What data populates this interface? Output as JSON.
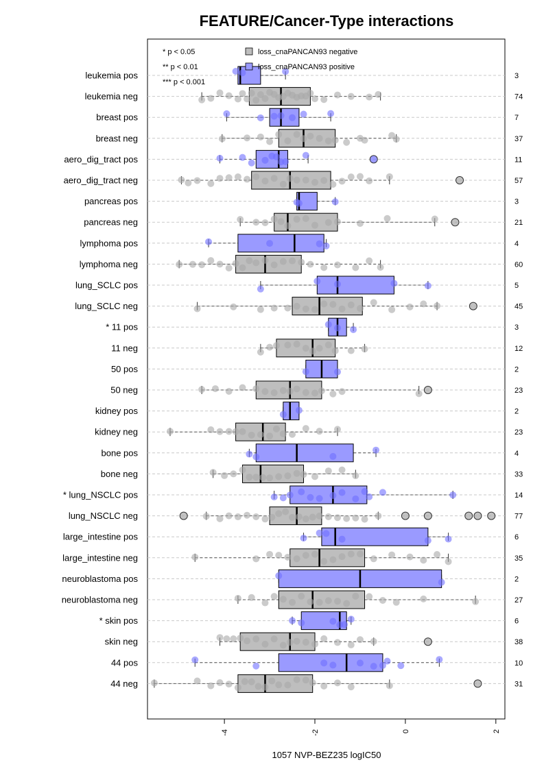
{
  "chart_data": {
    "type": "boxplot",
    "title": "FEATURE/Cancer-Type interactions",
    "xlabel": "1057 NVP-BEZ235 logIC50",
    "ylabel": "",
    "xlim": [
      -5.7,
      2.2
    ],
    "x_ticks": [
      -4,
      -2,
      0,
      2
    ],
    "x_tick_labels": [
      "-4",
      "-2",
      "0",
      "2"
    ],
    "significance_legend": [
      "* p < 0.05",
      "** p < 0.01",
      "*** p < 0.001"
    ],
    "legend": [
      {
        "label": "loss_cnaPANCAN93 negative",
        "color": "#bebebe"
      },
      {
        "label": "loss_cnaPANCAN93 positive",
        "color": "#9a9aff"
      }
    ],
    "colors": {
      "negative_fill": "#bebebe",
      "positive_fill": "#9a9aff",
      "negative_point": "#a8a8a8",
      "positive_point": "#7070ff",
      "grid": "#c8c8c8"
    },
    "rows": [
      {
        "label": "leukemia pos",
        "n": "3",
        "group": "pos",
        "whisker_low": -3.7,
        "q1": -3.7,
        "median": -3.65,
        "q3": -3.2,
        "whisker_high": -2.65,
        "outliers": [],
        "points": [
          -3.75,
          -3.6,
          -2.65
        ]
      },
      {
        "label": "leukemia neg",
        "n": "74",
        "group": "neg",
        "whisker_low": -4.5,
        "q1": -3.45,
        "median": -2.75,
        "q3": -2.1,
        "whisker_high": -0.55,
        "outliers": [],
        "points": [
          -4.5,
          -4.3,
          -4.1,
          -3.9,
          -3.7,
          -3.6,
          -3.5,
          -3.4,
          -3.3,
          -3.2,
          -3.1,
          -3.0,
          -2.9,
          -2.8,
          -2.7,
          -2.6,
          -2.5,
          -2.4,
          -2.3,
          -2.2,
          -2.1,
          -2.0,
          -1.8,
          -1.5,
          -1.2,
          -0.8,
          -0.6
        ]
      },
      {
        "label": "breast pos",
        "n": "7",
        "group": "pos",
        "whisker_low": -3.95,
        "q1": -3.0,
        "median": -2.75,
        "q3": -2.35,
        "whisker_high": -1.65,
        "outliers": [],
        "points": [
          -3.95,
          -3.2,
          -2.9,
          -2.75,
          -2.5,
          -2.25,
          -1.65
        ]
      },
      {
        "label": "breast neg",
        "n": "37",
        "group": "neg",
        "whisker_low": -4.05,
        "q1": -2.8,
        "median": -2.25,
        "q3": -1.55,
        "whisker_high": -0.2,
        "outliers": [],
        "points": [
          -4.05,
          -3.5,
          -3.2,
          -3.0,
          -2.8,
          -2.6,
          -2.4,
          -2.25,
          -2.1,
          -1.9,
          -1.7,
          -1.55,
          -1.3,
          -1.0,
          -0.9,
          -0.3,
          -0.2
        ]
      },
      {
        "label": "aero_dig_tract pos",
        "n": "11",
        "group": "pos",
        "whisker_low": -4.1,
        "q1": -3.3,
        "median": -2.8,
        "q3": -2.6,
        "whisker_high": -2.15,
        "outliers": [
          -0.7
        ],
        "points": [
          -4.1,
          -3.6,
          -3.4,
          -3.1,
          -2.95,
          -2.85,
          -2.75,
          -2.65,
          -2.2
        ]
      },
      {
        "label": "aero_dig_tract neg",
        "n": "57",
        "group": "neg",
        "whisker_low": -4.95,
        "q1": -3.4,
        "median": -2.55,
        "q3": -1.65,
        "whisker_high": -0.35,
        "outliers": [
          1.2
        ],
        "points": [
          -4.95,
          -4.8,
          -4.6,
          -4.3,
          -4.1,
          -3.9,
          -3.7,
          -3.5,
          -3.3,
          -3.1,
          -2.9,
          -2.7,
          -2.55,
          -2.4,
          -2.2,
          -2.0,
          -1.8,
          -1.6,
          -1.4,
          -1.2,
          -1.0,
          -0.8,
          -0.35
        ]
      },
      {
        "label": "pancreas pos",
        "n": "3",
        "group": "pos",
        "whisker_low": -2.4,
        "q1": -2.4,
        "median": -2.35,
        "q3": -1.95,
        "whisker_high": -1.55,
        "outliers": [],
        "points": [
          -2.4,
          -2.35,
          -1.55
        ]
      },
      {
        "label": "pancreas neg",
        "n": "21",
        "group": "neg",
        "whisker_low": -3.65,
        "q1": -2.9,
        "median": -2.6,
        "q3": -1.5,
        "whisker_high": 0.65,
        "outliers": [
          1.1
        ],
        "points": [
          -3.65,
          -3.3,
          -3.1,
          -2.9,
          -2.75,
          -2.6,
          -2.4,
          -2.2,
          -2.0,
          -1.7,
          -1.5,
          -1.0,
          -0.4,
          0.65
        ]
      },
      {
        "label": "lymphoma pos",
        "n": "4",
        "group": "pos",
        "whisker_low": -4.35,
        "q1": -3.7,
        "median": -2.45,
        "q3": -1.8,
        "whisker_high": -1.75,
        "outliers": [],
        "points": [
          -4.35,
          -3.0,
          -1.9,
          -1.75
        ]
      },
      {
        "label": "lymphoma neg",
        "n": "60",
        "group": "neg",
        "whisker_low": -5.0,
        "q1": -3.75,
        "median": -3.1,
        "q3": -2.3,
        "whisker_high": -0.55,
        "outliers": [],
        "points": [
          -5.0,
          -4.7,
          -4.5,
          -4.3,
          -4.1,
          -3.9,
          -3.75,
          -3.6,
          -3.45,
          -3.3,
          -3.1,
          -2.9,
          -2.7,
          -2.5,
          -2.3,
          -2.1,
          -1.8,
          -1.5,
          -1.1,
          -0.8,
          -0.55
        ]
      },
      {
        "label": "lung_SCLC pos",
        "n": "5",
        "group": "pos",
        "whisker_low": -3.2,
        "q1": -1.95,
        "median": -1.5,
        "q3": -0.25,
        "whisker_high": 0.5,
        "outliers": [],
        "points": [
          -3.2,
          -1.95,
          -1.5,
          -0.25,
          0.5
        ]
      },
      {
        "label": "lung_SCLC neg",
        "n": "45",
        "group": "neg",
        "whisker_low": -4.6,
        "q1": -2.5,
        "median": -1.9,
        "q3": -0.95,
        "whisker_high": 0.7,
        "outliers": [
          1.5
        ],
        "points": [
          -4.6,
          -3.8,
          -3.2,
          -2.9,
          -2.6,
          -2.4,
          -2.2,
          -2.0,
          -1.8,
          -1.6,
          -1.4,
          -1.2,
          -1.0,
          -0.7,
          -0.3,
          0.1,
          0.4,
          0.7
        ]
      },
      {
        "label": "* 11 pos",
        "n": "3",
        "group": "pos",
        "whisker_low": -1.7,
        "q1": -1.7,
        "median": -1.5,
        "q3": -1.3,
        "whisker_high": -1.15,
        "outliers": [],
        "points": [
          -1.7,
          -1.5,
          -1.15
        ]
      },
      {
        "label": "11 neg",
        "n": "12",
        "group": "neg",
        "whisker_low": -3.2,
        "q1": -2.85,
        "median": -2.05,
        "q3": -1.55,
        "whisker_high": -0.9,
        "outliers": [],
        "points": [
          -3.2,
          -3.0,
          -2.85,
          -2.6,
          -2.4,
          -2.2,
          -2.05,
          -1.9,
          -1.7,
          -1.55,
          -1.2,
          -0.9
        ]
      },
      {
        "label": "50 pos",
        "n": "2",
        "group": "pos",
        "whisker_low": -2.2,
        "q1": -2.2,
        "median": -1.85,
        "q3": -1.5,
        "whisker_high": -1.5,
        "outliers": [],
        "points": [
          -2.2,
          -1.5
        ]
      },
      {
        "label": "50 neg",
        "n": "23",
        "group": "neg",
        "whisker_low": -4.5,
        "q1": -3.3,
        "median": -2.55,
        "q3": -1.85,
        "whisker_high": 0.3,
        "outliers": [
          0.5
        ],
        "points": [
          -4.5,
          -4.2,
          -3.9,
          -3.6,
          -3.3,
          -3.1,
          -2.9,
          -2.7,
          -2.55,
          -2.4,
          -2.2,
          -2.0,
          -1.85,
          -1.6,
          -1.4,
          0.3
        ]
      },
      {
        "label": "kidney pos",
        "n": "2",
        "group": "pos",
        "whisker_low": -2.7,
        "q1": -2.7,
        "median": -2.55,
        "q3": -2.35,
        "whisker_high": -2.35,
        "outliers": [],
        "points": [
          -2.7,
          -2.35
        ]
      },
      {
        "label": "kidney neg",
        "n": "23",
        "group": "neg",
        "whisker_low": -5.2,
        "q1": -3.75,
        "median": -3.15,
        "q3": -2.65,
        "whisker_high": -1.5,
        "outliers": [],
        "points": [
          -5.2,
          -4.3,
          -4.1,
          -3.9,
          -3.75,
          -3.6,
          -3.4,
          -3.2,
          -3.0,
          -2.85,
          -2.7,
          -2.5,
          -2.2,
          -1.9,
          -1.5
        ]
      },
      {
        "label": "bone pos",
        "n": "4",
        "group": "pos",
        "whisker_low": -3.45,
        "q1": -3.3,
        "median": -2.4,
        "q3": -1.15,
        "whisker_high": -0.65,
        "outliers": [],
        "points": [
          -3.45,
          -3.3,
          -1.6,
          -0.65
        ]
      },
      {
        "label": "bone neg",
        "n": "33",
        "group": "neg",
        "whisker_low": -4.25,
        "q1": -3.6,
        "median": -3.2,
        "q3": -2.25,
        "whisker_high": -1.1,
        "outliers": [],
        "points": [
          -4.25,
          -4.0,
          -3.8,
          -3.6,
          -3.45,
          -3.3,
          -3.15,
          -3.0,
          -2.8,
          -2.6,
          -2.4,
          -2.25,
          -2.0,
          -1.7,
          -1.4,
          -1.1
        ]
      },
      {
        "label": "* lung_NSCLC pos",
        "n": "14",
        "group": "pos",
        "whisker_low": -2.9,
        "q1": -2.55,
        "median": -1.6,
        "q3": -0.85,
        "whisker_high": 1.05,
        "outliers": [],
        "points": [
          -2.9,
          -2.7,
          -2.55,
          -2.3,
          -2.1,
          -1.9,
          -1.6,
          -1.4,
          -1.1,
          -0.9,
          -0.8,
          -0.5,
          1.05
        ]
      },
      {
        "label": "lung_NSCLC neg",
        "n": "77",
        "group": "neg",
        "whisker_low": -4.4,
        "q1": -3.0,
        "median": -2.4,
        "q3": -1.85,
        "whisker_high": -0.6,
        "outliers": [
          -4.9,
          0.0,
          0.5,
          1.4,
          1.6,
          1.9
        ],
        "points": [
          -4.4,
          -4.1,
          -3.9,
          -3.7,
          -3.5,
          -3.3,
          -3.1,
          -2.95,
          -2.8,
          -2.65,
          -2.5,
          -2.35,
          -2.2,
          -2.05,
          -1.9,
          -1.7,
          -1.5,
          -1.3,
          -1.1,
          -0.9,
          -0.6
        ]
      },
      {
        "label": "large_intestine pos",
        "n": "6",
        "group": "pos",
        "whisker_low": -2.25,
        "q1": -1.85,
        "median": -1.55,
        "q3": 0.5,
        "whisker_high": 0.95,
        "outliers": [],
        "points": [
          -2.25,
          -1.9,
          -1.75,
          -1.4,
          0.5,
          0.95
        ]
      },
      {
        "label": "large_intestine neg",
        "n": "35",
        "group": "neg",
        "whisker_low": -4.65,
        "q1": -2.55,
        "median": -1.9,
        "q3": -0.9,
        "whisker_high": 0.95,
        "outliers": [],
        "points": [
          -4.65,
          -3.3,
          -3.0,
          -2.8,
          -2.6,
          -2.4,
          -2.2,
          -2.0,
          -1.8,
          -1.6,
          -1.4,
          -1.2,
          -1.0,
          -0.7,
          -0.3,
          0.1,
          0.4,
          0.7,
          0.95
        ]
      },
      {
        "label": "neuroblastoma pos",
        "n": "2",
        "group": "pos",
        "whisker_low": -2.8,
        "q1": -2.8,
        "median": -1.0,
        "q3": 0.8,
        "whisker_high": 0.8,
        "outliers": [],
        "points": [
          -2.8,
          0.8
        ]
      },
      {
        "label": "neuroblastoma neg",
        "n": "27",
        "group": "neg",
        "whisker_low": -3.7,
        "q1": -2.8,
        "median": -2.05,
        "q3": -0.9,
        "whisker_high": 1.55,
        "outliers": [],
        "points": [
          -3.7,
          -3.4,
          -3.1,
          -2.9,
          -2.7,
          -2.5,
          -2.3,
          -2.1,
          -1.9,
          -1.7,
          -1.5,
          -1.3,
          -1.1,
          -0.8,
          -0.5,
          -0.2,
          0.4,
          1.55
        ]
      },
      {
        "label": "* skin pos",
        "n": "6",
        "group": "pos",
        "whisker_low": -2.5,
        "q1": -2.3,
        "median": -1.45,
        "q3": -1.3,
        "whisker_high": -1.2,
        "outliers": [],
        "points": [
          -2.5,
          -2.3,
          -1.6,
          -1.45,
          -1.35,
          -1.2
        ]
      },
      {
        "label": "skin neg",
        "n": "38",
        "group": "neg",
        "whisker_low": -4.1,
        "q1": -3.65,
        "median": -2.55,
        "q3": -2.0,
        "whisker_high": -0.7,
        "outliers": [
          0.5
        ],
        "points": [
          -4.1,
          -3.95,
          -3.8,
          -3.65,
          -3.5,
          -3.3,
          -3.1,
          -2.9,
          -2.7,
          -2.55,
          -2.4,
          -2.2,
          -2.0,
          -1.8,
          -1.5,
          -1.2,
          -1.0,
          -0.7
        ]
      },
      {
        "label": "44 pos",
        "n": "10",
        "group": "pos",
        "whisker_low": -4.65,
        "q1": -2.8,
        "median": -1.3,
        "q3": -0.5,
        "whisker_high": 0.75,
        "outliers": [],
        "points": [
          -4.65,
          -3.3,
          -1.8,
          -1.6,
          -1.0,
          -0.7,
          -0.5,
          -0.4,
          -0.1,
          0.75
        ]
      },
      {
        "label": "44 neg",
        "n": "31",
        "group": "neg",
        "whisker_low": -5.55,
        "q1": -3.7,
        "median": -3.1,
        "q3": -2.05,
        "whisker_high": -0.35,
        "outliers": [
          1.6
        ],
        "points": [
          -5.55,
          -4.6,
          -4.3,
          -4.1,
          -3.9,
          -3.7,
          -3.55,
          -3.4,
          -3.25,
          -3.1,
          -2.95,
          -2.8,
          -2.6,
          -2.4,
          -2.2,
          -2.05,
          -1.8,
          -1.5,
          -1.2,
          -0.35
        ]
      }
    ]
  }
}
